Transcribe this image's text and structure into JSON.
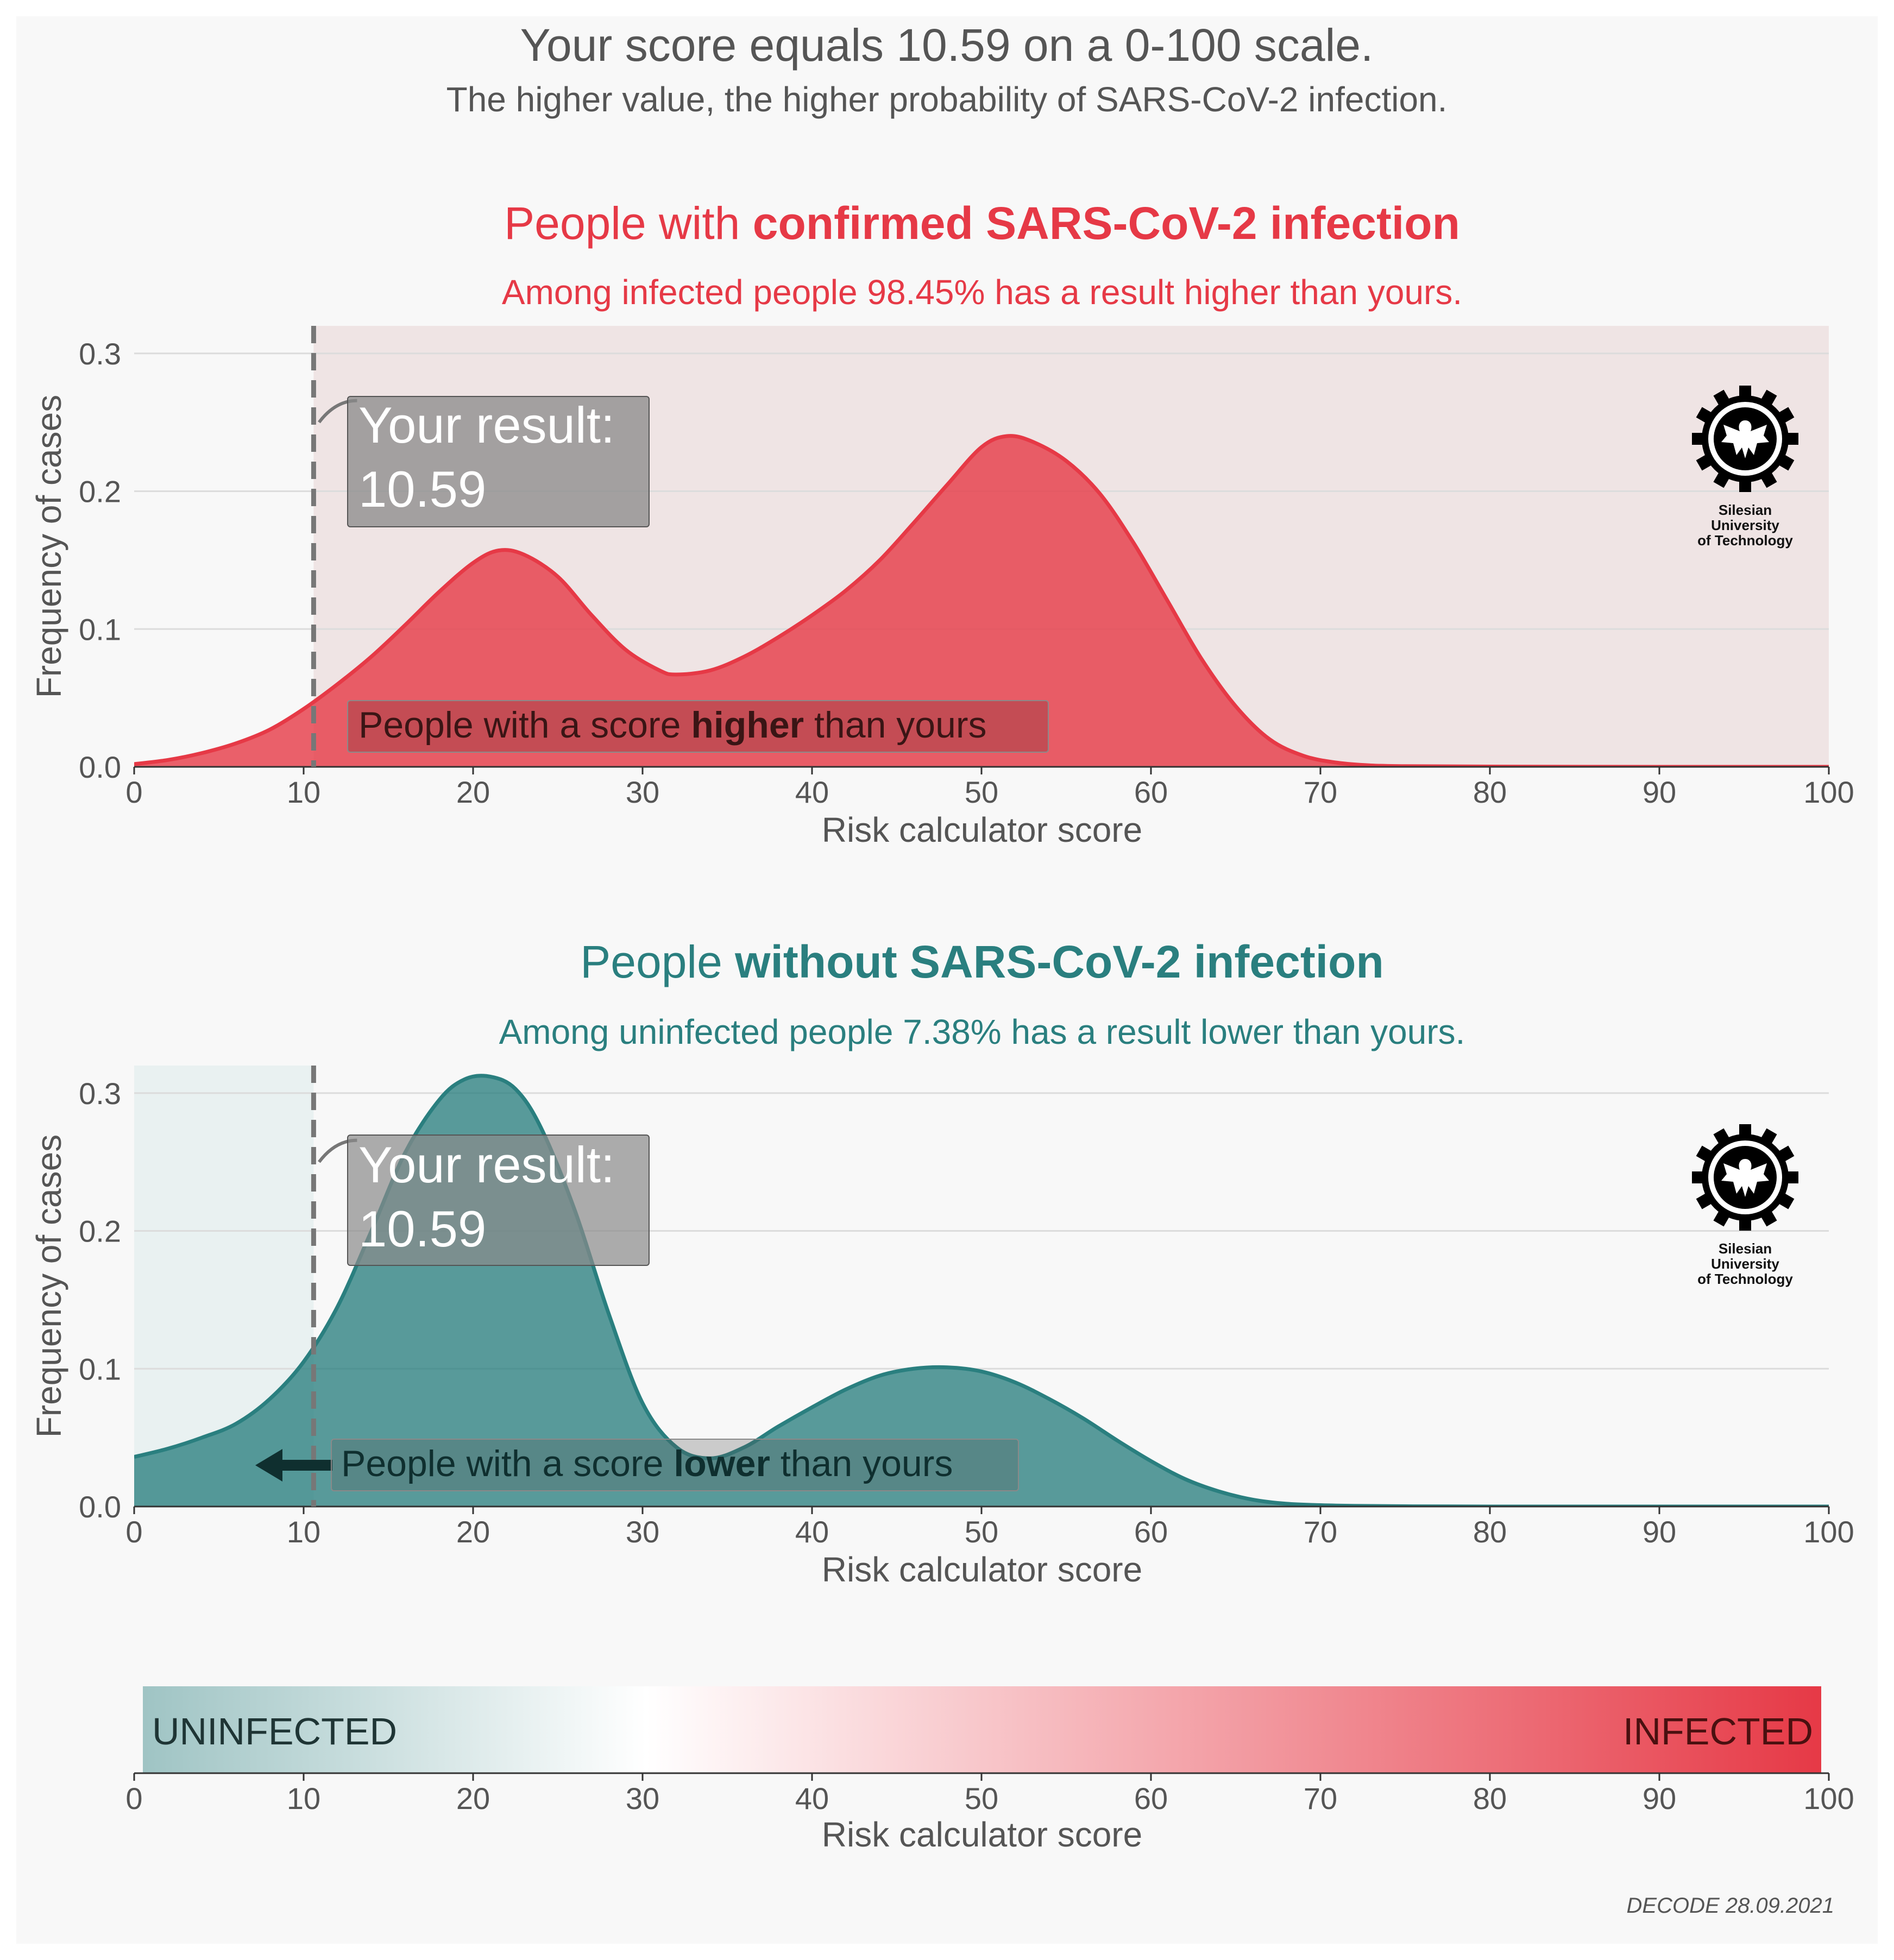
{
  "header": {
    "title": "Your score equals 10.59 on a 0-100 scale.",
    "subtitle": "The higher value, the higher probability of SARS-CoV-2 infection."
  },
  "colors": {
    "infected": "#e63946",
    "uninfected": "#2a7f7f",
    "page_bg": "#f8f8f8",
    "marker": "#777777",
    "text": "#555555"
  },
  "logo": {
    "lines": [
      "Silesian",
      "University",
      "of Technology"
    ]
  },
  "footer": {
    "credit": "DECODE 28.09.2021"
  },
  "chart_data": [
    {
      "id": "infected",
      "type": "area",
      "title_prefix": "People with ",
      "title_bold": "confirmed SARS-CoV-2 infection",
      "subtitle": "Among infected people 98.45% has a result higher than yours.",
      "xlabel": "Risk calculator score",
      "ylabel": "Frequency of cases",
      "xlim": [
        0,
        100
      ],
      "ylim": [
        0,
        0.32
      ],
      "xticks": [
        0,
        10,
        20,
        30,
        40,
        50,
        60,
        70,
        80,
        90,
        100
      ],
      "yticks": [
        0.0,
        0.1,
        0.2,
        0.3
      ],
      "ytick_labels": [
        "0.0",
        "0.1",
        "0.2",
        "0.3"
      ],
      "grid": true,
      "user_score": 10.59,
      "shaded_side": "right",
      "marker_label_line1": "Your result:",
      "marker_label_line2": "10.59",
      "region_prefix": "People with a score ",
      "region_bold": "higher",
      "region_suffix": " than yours",
      "x": [
        0,
        2,
        4,
        6,
        8,
        10,
        12,
        14,
        16,
        18,
        20,
        21.5,
        23,
        25,
        27,
        29,
        31,
        32,
        34,
        36,
        38,
        40,
        42,
        44,
        46,
        48,
        50,
        51.5,
        53,
        55,
        57,
        59,
        61,
        63,
        65,
        67,
        69,
        71,
        73,
        75,
        80,
        90,
        100
      ],
      "y": [
        0.002,
        0.005,
        0.01,
        0.017,
        0.027,
        0.042,
        0.06,
        0.08,
        0.103,
        0.127,
        0.148,
        0.157,
        0.154,
        0.138,
        0.11,
        0.085,
        0.07,
        0.067,
        0.07,
        0.08,
        0.094,
        0.11,
        0.128,
        0.15,
        0.177,
        0.205,
        0.232,
        0.24,
        0.236,
        0.222,
        0.198,
        0.162,
        0.12,
        0.078,
        0.044,
        0.02,
        0.008,
        0.003,
        0.001,
        0.0005,
        0.0002,
        0.0,
        0.0
      ]
    },
    {
      "id": "uninfected",
      "type": "area",
      "title_prefix": "People ",
      "title_bold": "without SARS-CoV-2 infection",
      "subtitle": "Among uninfected people 7.38% has a result lower than yours.",
      "xlabel": "Risk calculator score",
      "ylabel": "Frequency of cases",
      "xlim": [
        0,
        100
      ],
      "ylim": [
        0,
        0.32
      ],
      "xticks": [
        0,
        10,
        20,
        30,
        40,
        50,
        60,
        70,
        80,
        90,
        100
      ],
      "yticks": [
        0.0,
        0.1,
        0.2,
        0.3
      ],
      "ytick_labels": [
        "0.0",
        "0.1",
        "0.2",
        "0.3"
      ],
      "grid": true,
      "user_score": 10.59,
      "shaded_side": "left",
      "marker_label_line1": "Your result:",
      "marker_label_line2": "10.59",
      "region_prefix": "People with a score ",
      "region_bold": "lower",
      "region_suffix": " than yours",
      "x": [
        0,
        2,
        4,
        6,
        8,
        10,
        12,
        14,
        16,
        18,
        19.5,
        21,
        22.5,
        24,
        26,
        28,
        30,
        32,
        34,
        36,
        38,
        40,
        42,
        44,
        46,
        48,
        50,
        52,
        54,
        56,
        58,
        60,
        62,
        64,
        66,
        68,
        70,
        72,
        75,
        80,
        90,
        100
      ],
      "y": [
        0.036,
        0.042,
        0.05,
        0.06,
        0.078,
        0.105,
        0.145,
        0.2,
        0.257,
        0.295,
        0.31,
        0.312,
        0.303,
        0.275,
        0.215,
        0.14,
        0.075,
        0.043,
        0.035,
        0.043,
        0.058,
        0.072,
        0.085,
        0.095,
        0.1,
        0.101,
        0.098,
        0.09,
        0.078,
        0.064,
        0.048,
        0.033,
        0.02,
        0.011,
        0.005,
        0.002,
        0.001,
        0.0005,
        0.0002,
        0.0,
        0.0,
        0.0
      ]
    }
  ],
  "colorbar": {
    "left_label": "UNINFECTED",
    "right_label": "INFECTED",
    "xlabel": "Risk calculator score",
    "xticks": [
      0,
      10,
      20,
      30,
      40,
      50,
      60,
      70,
      80,
      90,
      100
    ],
    "gradient_stops": [
      {
        "value": 0,
        "color": "#9fc4c4"
      },
      {
        "value": 30,
        "color": "#ffffff"
      },
      {
        "value": 100,
        "color": "#e63946"
      }
    ]
  }
}
